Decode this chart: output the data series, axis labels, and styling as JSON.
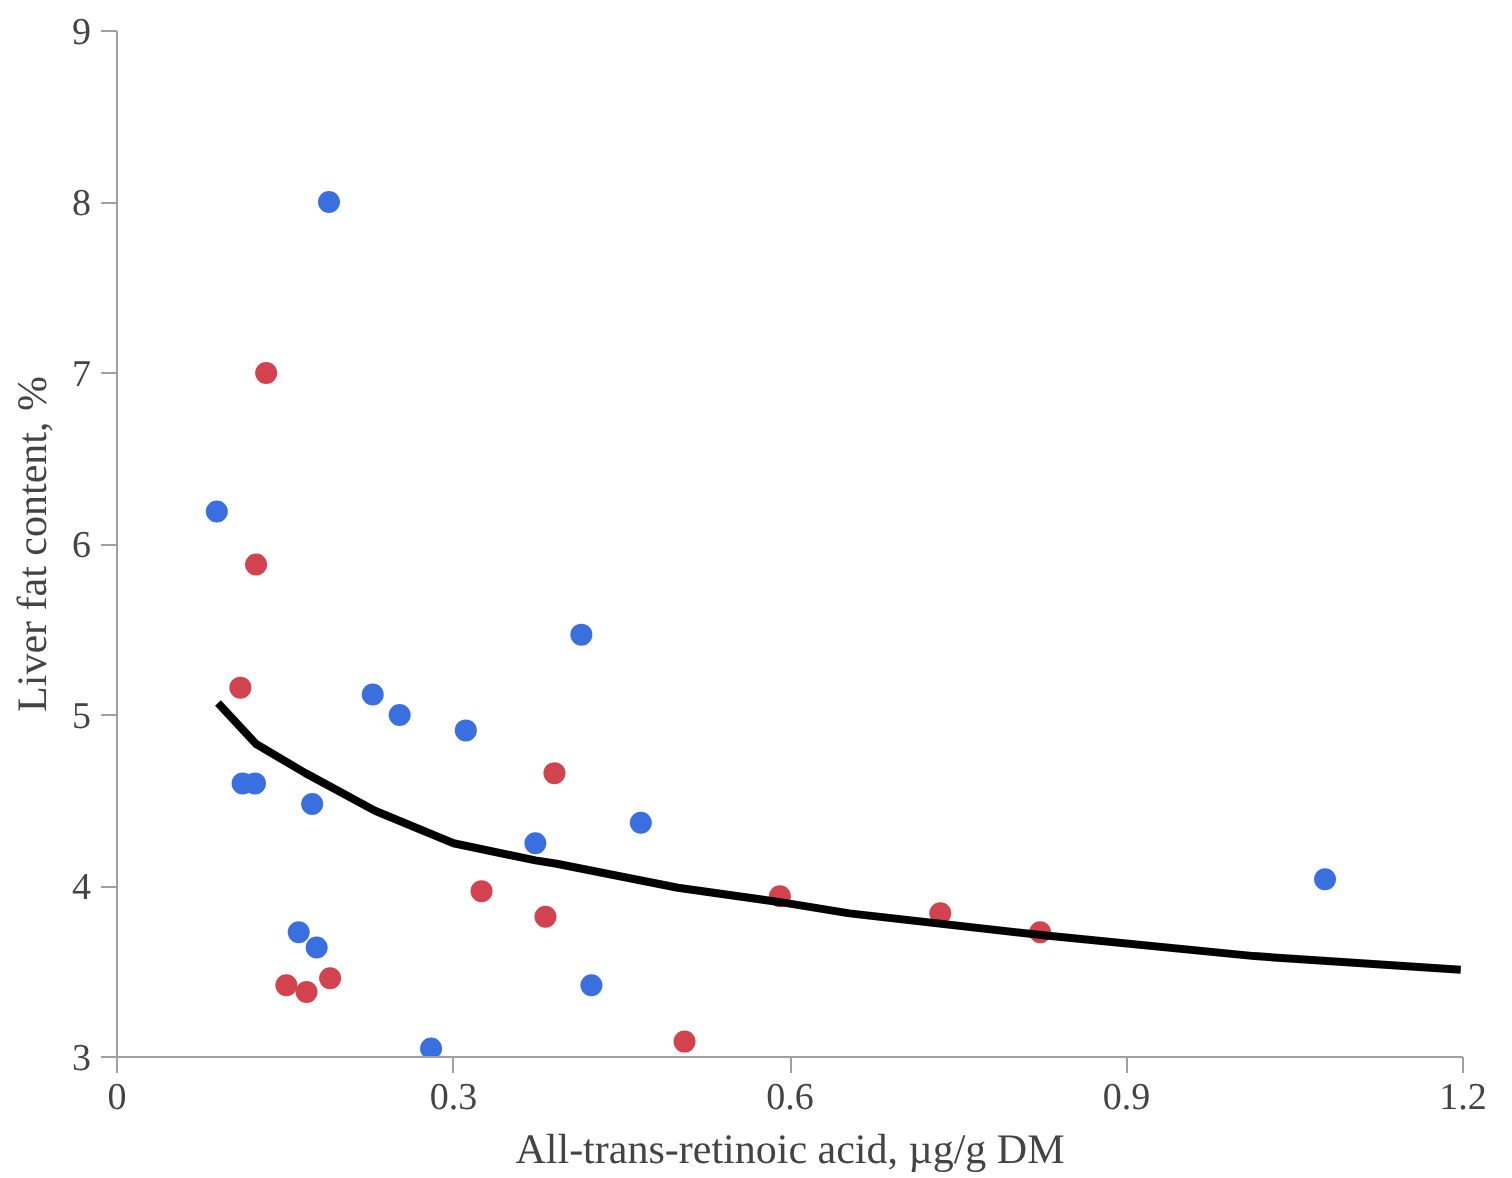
{
  "chart_data": {
    "type": "scatter",
    "xlabel": "All-trans-retinoic acid, µg/g DM",
    "ylabel": "Liver fat content, %",
    "xlim": [
      0,
      1.2
    ],
    "xticks": [
      0,
      0.3,
      0.6,
      0.9,
      1.2
    ],
    "ylim": [
      3,
      9
    ],
    "yticks": [
      3,
      4,
      5,
      6,
      7,
      8,
      9
    ],
    "grid": false,
    "marker": "circle",
    "series": [
      {
        "color": "#3a6fe0",
        "x": [
          0.189,
          0.089,
          0.112,
          0.123,
          0.174,
          0.228,
          0.252,
          0.311,
          0.414,
          0.373,
          0.467,
          0.162,
          0.178,
          0.423,
          0.28,
          1.077
        ],
        "values": [
          8.0,
          6.19,
          4.6,
          4.6,
          4.48,
          5.12,
          5.0,
          4.91,
          5.47,
          4.25,
          4.37,
          3.73,
          3.64,
          3.42,
          3.05,
          4.04
        ]
      },
      {
        "color": "#d2424f",
        "x": [
          0.133,
          0.124,
          0.11,
          0.39,
          0.325,
          0.382,
          0.151,
          0.169,
          0.19,
          0.506,
          0.591,
          0.734,
          0.823
        ],
        "values": [
          7.0,
          5.88,
          5.16,
          4.66,
          3.97,
          3.82,
          3.42,
          3.38,
          3.46,
          3.09,
          3.94,
          3.84,
          3.73
        ]
      },
      {
        "type": "line",
        "color": "#000000",
        "line_style": "solid",
        "marker": "none",
        "x": [
          0.09,
          0.124,
          0.168,
          0.23,
          0.3,
          0.373,
          0.392,
          0.5,
          0.597,
          0.653,
          0.828,
          1.014,
          1.198
        ],
        "values": [
          5.07,
          4.83,
          4.66,
          4.44,
          4.25,
          4.15,
          4.13,
          3.99,
          3.9,
          3.84,
          3.71,
          3.59,
          3.51
        ]
      }
    ]
  }
}
